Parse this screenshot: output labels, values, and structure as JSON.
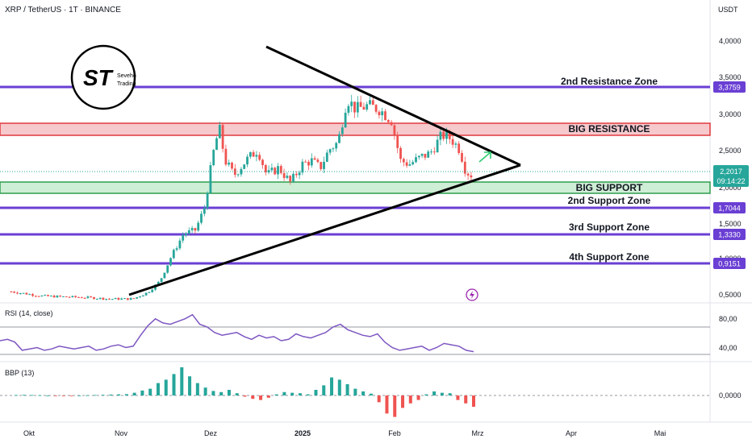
{
  "header": {
    "symbol_line": "XRP / TetherUS · 1T · BINANCE",
    "currency": "USDT"
  },
  "logo": {
    "initials": "ST",
    "line1": "Seveho",
    "line2": "Trading"
  },
  "price_axis_ticks": [
    "4,0000",
    "3,5000",
    "3,0000",
    "2,5000",
    "2,0000",
    "1,5000",
    "1,0000",
    "0,5000"
  ],
  "time_axis": [
    "Okt",
    "Nov",
    "Dez",
    "2025",
    "Feb",
    "Mrz",
    "Apr",
    "Mai"
  ],
  "zones": {
    "res2": "2nd Resistance Zone",
    "big_res": "BIG RESISTANCE",
    "big_sup": "BIG SUPPORT",
    "sup2": "2nd Support Zone",
    "sup3": "3rd Support Zone",
    "sup4": "4th Support Zone"
  },
  "price_tags": {
    "res2": "3,3759",
    "current": "2,2017",
    "countdown": "09:14:22",
    "sup2": "1,7044",
    "sup3": "1,3330",
    "sup4": "0,9151"
  },
  "rsi": {
    "label": "RSI (14, close)",
    "ticks": [
      "80,00",
      "40,00"
    ]
  },
  "bbp": {
    "label": "BBP (13)",
    "tick": "0,0000"
  },
  "colors": {
    "zone_purple": "#6a3fd4",
    "resistance_red": "#e03a3e",
    "support_green": "#2e9e4f",
    "up_candle": "#26a69a",
    "down_candle": "#ef5350",
    "rsi_line": "#7e57c2",
    "arrow_green": "#2ecc71"
  },
  "chart_data": {
    "type": "candlestick",
    "symbol": "XRP / TetherUS",
    "interval": "1T",
    "ylim": [
      0.4,
      4.3
    ],
    "levels": {
      "resistance_2": 3.3759,
      "big_resistance": [
        2.68,
        2.92
      ],
      "big_support": [
        1.91,
        2.07
      ],
      "support_2": 1.7044,
      "support_3": 1.333,
      "support_4": 0.9151,
      "current_price": 2.2017
    },
    "triangle": {
      "upper_line": [
        [
          "2024-11-25",
          3.9
        ],
        [
          "2025-03-10",
          2.3
        ]
      ],
      "lower_line": [
        [
          "2024-11-05",
          0.5
        ],
        [
          "2025-03-10",
          2.3
        ]
      ]
    },
    "price_path": [
      [
        "2024-09-25",
        0.61
      ],
      [
        "2024-10-05",
        0.55
      ],
      [
        "2024-10-12",
        0.54
      ],
      [
        "2024-10-20",
        0.53
      ],
      [
        "2024-10-28",
        0.51
      ],
      [
        "2024-11-05",
        0.51
      ],
      [
        "2024-11-10",
        0.6
      ],
      [
        "2024-11-14",
        0.75
      ],
      [
        "2024-11-18",
        1.1
      ],
      [
        "2024-11-22",
        1.4
      ],
      [
        "2024-11-26",
        1.45
      ],
      [
        "2024-11-29",
        1.75
      ],
      [
        "2024-12-02",
        2.5
      ],
      [
        "2024-12-04",
        2.85
      ],
      [
        "2024-12-06",
        2.4
      ],
      [
        "2024-12-09",
        2.2
      ],
      [
        "2024-12-13",
        2.4
      ],
      [
        "2024-12-17",
        2.55
      ],
      [
        "2024-12-20",
        2.2
      ],
      [
        "2024-12-24",
        2.3
      ],
      [
        "2024-12-28",
        2.1
      ],
      [
        "2025-01-01",
        2.35
      ],
      [
        "2025-01-04",
        2.4
      ],
      [
        "2025-01-07",
        2.3
      ],
      [
        "2025-01-10",
        2.55
      ],
      [
        "2025-01-13",
        2.65
      ],
      [
        "2025-01-16",
        3.25
      ],
      [
        "2025-01-19",
        3.1
      ],
      [
        "2025-01-23",
        3.15
      ],
      [
        "2025-01-27",
        3.1
      ],
      [
        "2025-01-31",
        2.95
      ],
      [
        "2025-02-03",
        2.4
      ],
      [
        "2025-02-06",
        2.35
      ],
      [
        "2025-02-10",
        2.45
      ],
      [
        "2025-02-13",
        2.5
      ],
      [
        "2025-02-17",
        2.75
      ],
      [
        "2025-02-20",
        2.7
      ],
      [
        "2025-02-23",
        2.55
      ],
      [
        "2025-02-25",
        2.25
      ],
      [
        "2025-02-27",
        2.2
      ]
    ],
    "rsi": {
      "ylim": [
        20,
        100
      ],
      "levels": [
        70,
        30
      ],
      "values": [
        50,
        52,
        48,
        36,
        38,
        40,
        36,
        38,
        42,
        40,
        38,
        40,
        42,
        36,
        38,
        42,
        44,
        40,
        42,
        58,
        72,
        82,
        76,
        74,
        78,
        82,
        88,
        74,
        70,
        62,
        58,
        60,
        62,
        56,
        52,
        58,
        54,
        56,
        50,
        52,
        60,
        56,
        54,
        58,
        62,
        70,
        74,
        66,
        62,
        58,
        56,
        60,
        48,
        40,
        36,
        38,
        40,
        42,
        36,
        40,
        46,
        44,
        42,
        36,
        34
      ]
    },
    "bbp": {
      "values": [
        0.02,
        0.03,
        0.02,
        0.01,
        0.0,
        -0.01,
        -0.02,
        -0.01,
        0.0,
        0.01,
        0.02,
        0.03,
        0.04,
        0.05,
        0.06,
        0.12,
        0.22,
        0.3,
        0.55,
        0.7,
        0.95,
        1.25,
        0.85,
        0.55,
        0.35,
        0.2,
        0.15,
        0.25,
        0.1,
        -0.05,
        -0.15,
        -0.2,
        -0.1,
        0.05,
        0.15,
        0.12,
        0.1,
        0.05,
        0.25,
        0.45,
        0.8,
        0.7,
        0.5,
        0.3,
        0.18,
        0.08,
        -0.3,
        -0.8,
        -0.95,
        -0.55,
        -0.35,
        -0.2,
        0.05,
        0.18,
        0.12,
        0.1,
        -0.2,
        -0.35,
        -0.5
      ]
    }
  }
}
